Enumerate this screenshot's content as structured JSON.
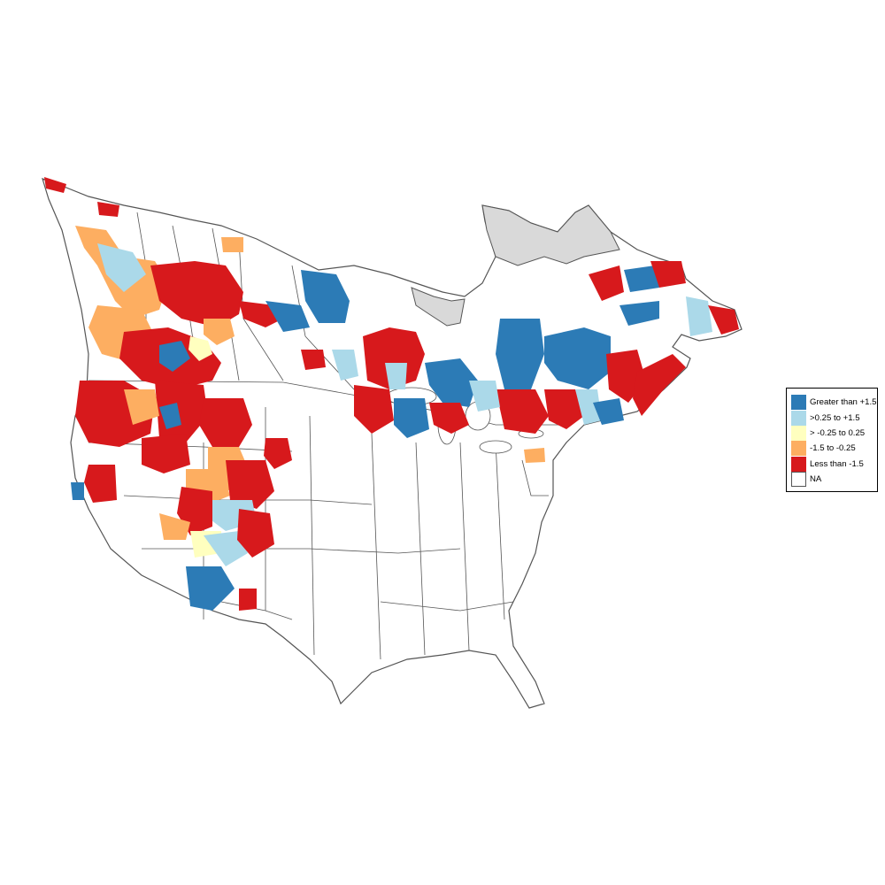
{
  "legend": {
    "items": [
      {
        "label": "Greater than +1.5",
        "color": "#2c7bb6"
      },
      {
        "label": ">0.25 to +1.5",
        "color": "#abd9e9"
      },
      {
        "label": "> -0.25 to 0.25",
        "color": "#ffffbf"
      },
      {
        "label": "-1.5 to -0.25",
        "color": "#fdae61"
      },
      {
        "label": "Less than -1.5",
        "color": "#d7191c"
      },
      {
        "label": "NA",
        "color": "#ffffff"
      }
    ]
  },
  "map": {
    "region": "North America",
    "excluded_color": "#d9d9d9",
    "boundary_color": "#555555"
  }
}
